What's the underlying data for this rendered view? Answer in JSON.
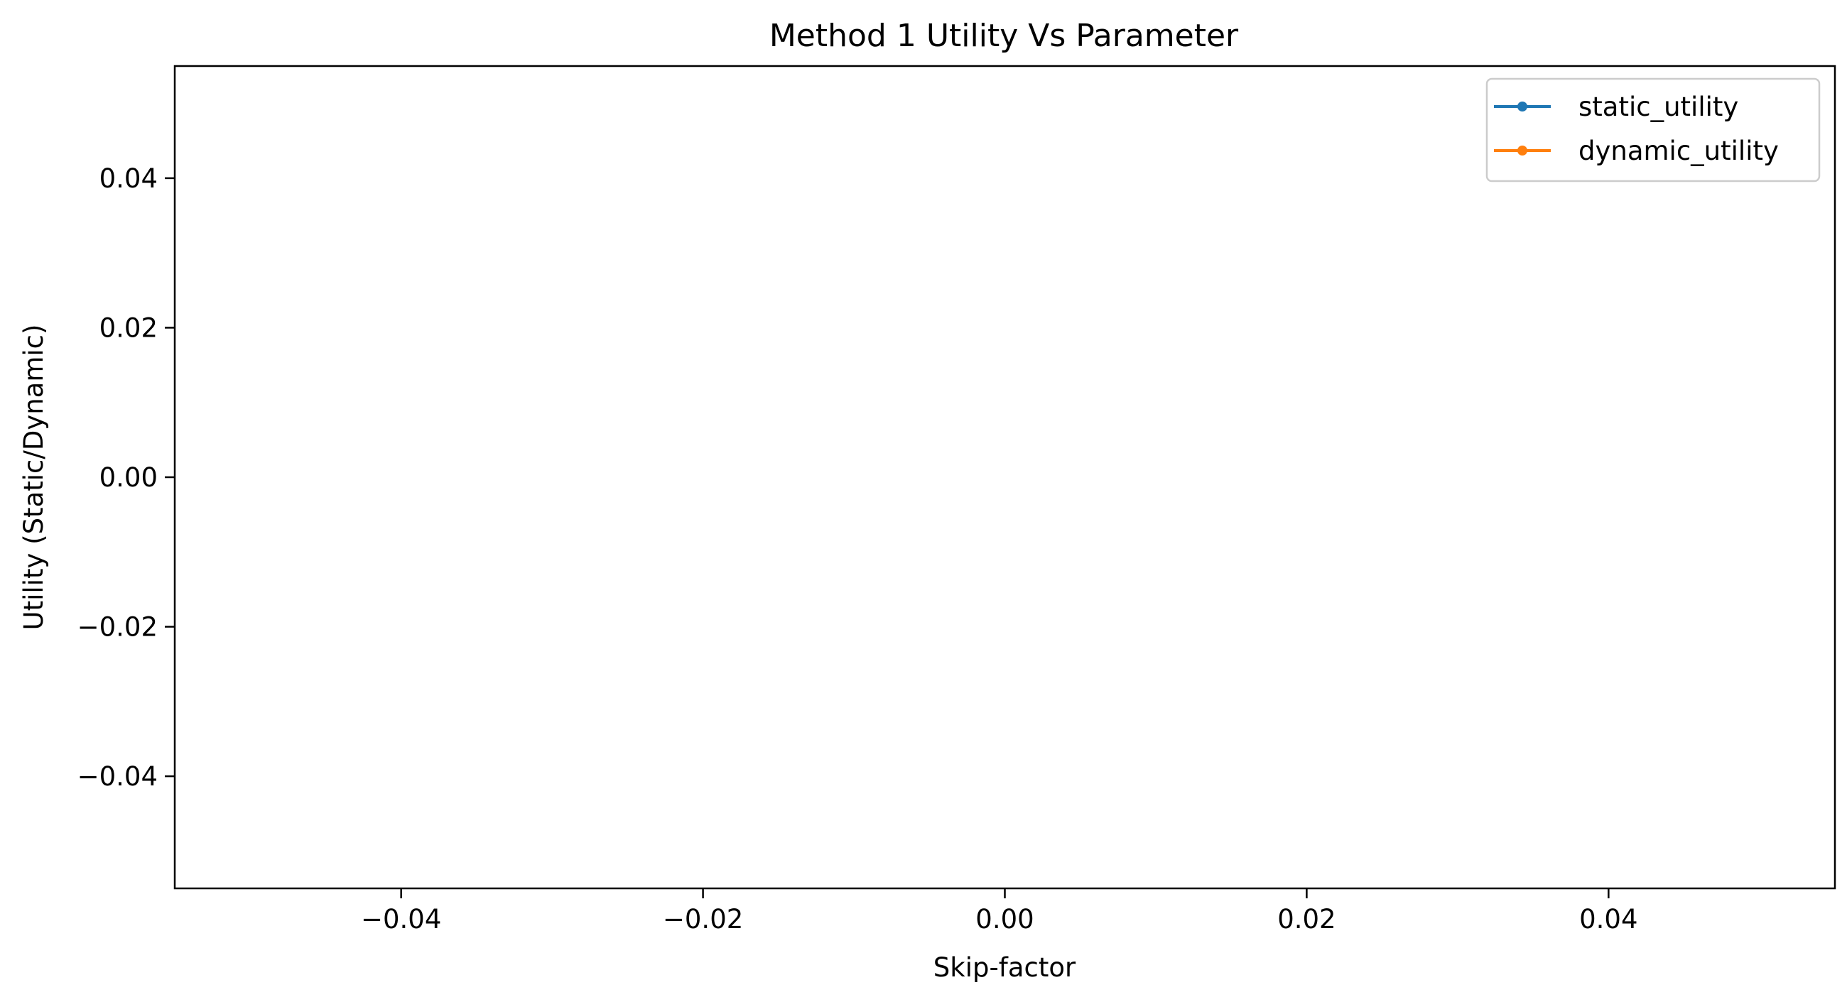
{
  "chart_data": {
    "type": "line",
    "title": "Method 1 Utility Vs Parameter",
    "xlabel": "Skip-factor",
    "ylabel": "Utility (Static/Dynamic)",
    "xlim": [
      -0.055,
      0.055
    ],
    "ylim": [
      -0.055,
      0.055
    ],
    "x_ticks": [
      -0.04,
      -0.02,
      0.0,
      0.02,
      0.04
    ],
    "x_tick_labels": [
      "−0.04",
      "−0.02",
      "0.00",
      "0.02",
      "0.04"
    ],
    "y_ticks": [
      -0.04,
      -0.02,
      0.0,
      0.02,
      0.04
    ],
    "y_tick_labels": [
      "−0.04",
      "−0.02",
      "0.00",
      "0.02",
      "0.04"
    ],
    "grid": false,
    "legend_position": "top-right",
    "x": [],
    "series": [
      {
        "name": "static_utility",
        "color": "#1f77b4",
        "marker": "circle",
        "values": []
      },
      {
        "name": "dynamic_utility",
        "color": "#ff7f0e",
        "marker": "circle",
        "values": []
      }
    ]
  }
}
